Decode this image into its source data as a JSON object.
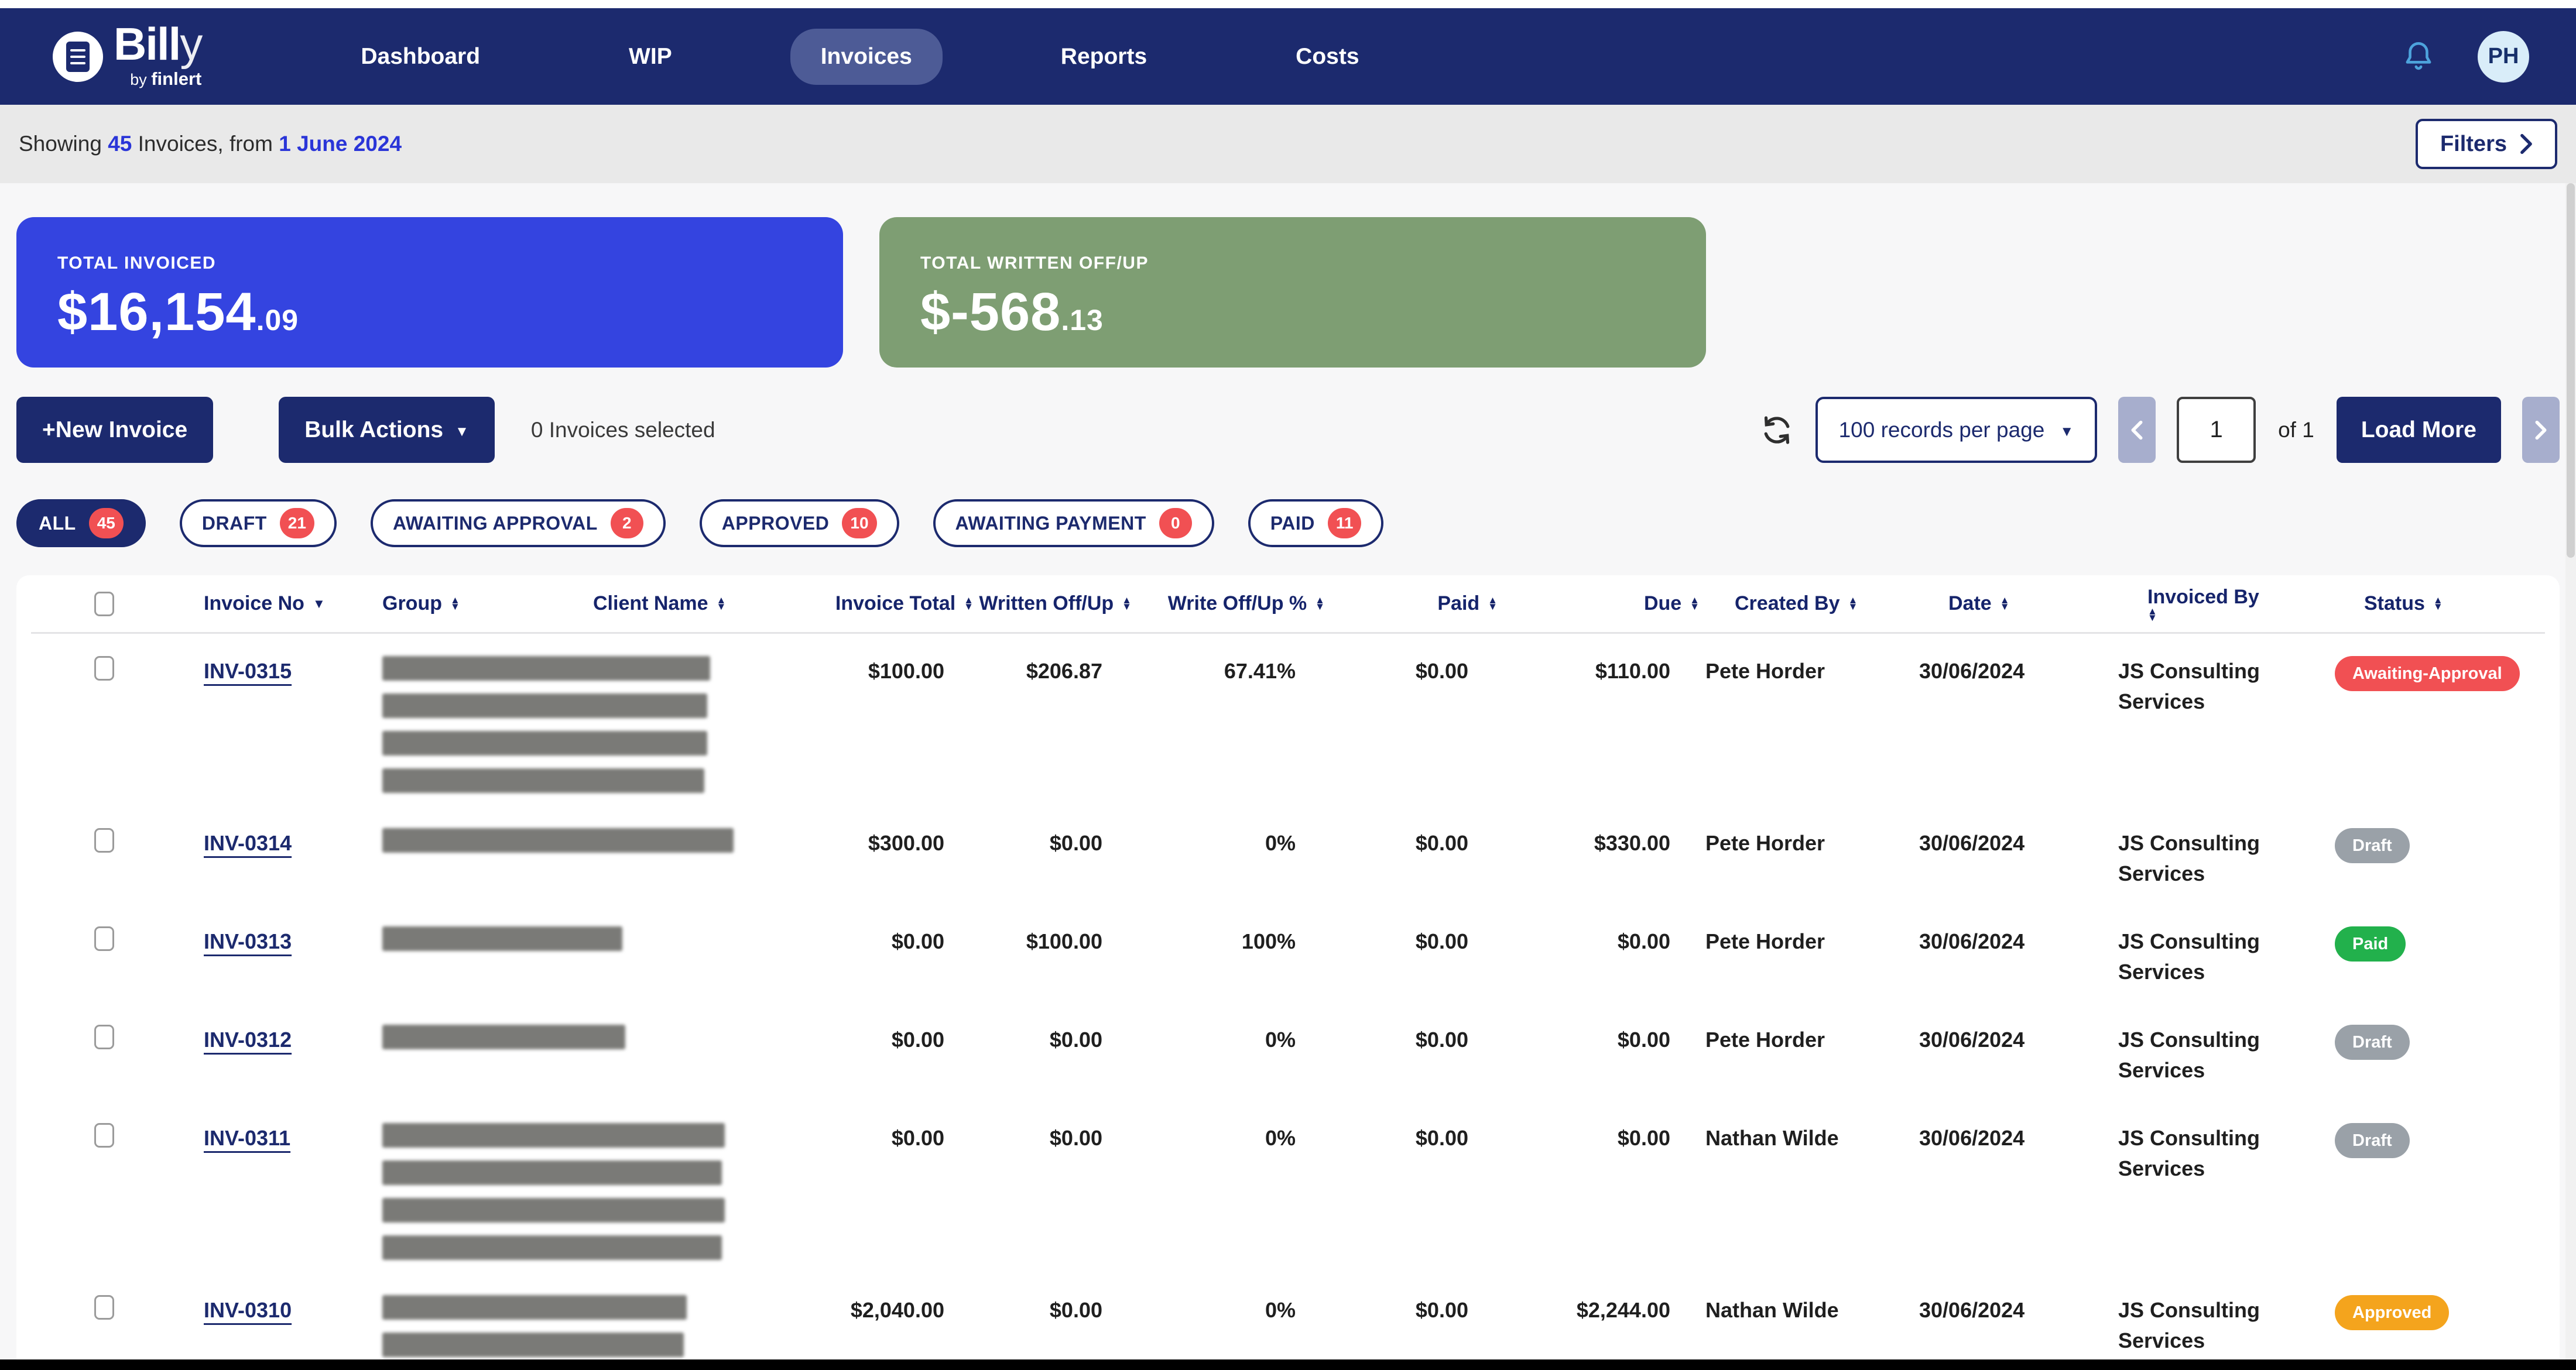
{
  "nav": {
    "brand": {
      "name_bold": "Bill",
      "name_light": "y",
      "byline_small": "by ",
      "byline_bold": "finlert"
    },
    "items": [
      {
        "label": "Dashboard",
        "active": false
      },
      {
        "label": "WIP",
        "active": false
      },
      {
        "label": "Invoices",
        "active": true
      },
      {
        "label": "Reports",
        "active": false
      },
      {
        "label": "Costs",
        "active": false
      }
    ],
    "avatar_initials": "PH"
  },
  "subheader": {
    "prefix": "Showing ",
    "count": "45",
    "middle": " Invoices, from ",
    "date": "1 June 2024",
    "filters_label": "Filters"
  },
  "summary_cards": [
    {
      "label": "TOTAL INVOICED",
      "value_main": "$16,154",
      "value_cents": ".09",
      "color": "#3444e0"
    },
    {
      "label": "TOTAL WRITTEN OFF/UP",
      "value_main": "$-568",
      "value_cents": ".13",
      "color": "#7e9e73"
    }
  ],
  "toolbar": {
    "new_invoice_label": "+New Invoice",
    "bulk_actions_label": "Bulk Actions",
    "selected_text": "0 Invoices selected",
    "records_per_page": "100 records per page",
    "page_value": "1",
    "of_text": "of 1",
    "load_more_label": "Load More"
  },
  "tabs": [
    {
      "label": "ALL",
      "count": "45",
      "active": true
    },
    {
      "label": "DRAFT",
      "count": "21",
      "active": false
    },
    {
      "label": "AWAITING APPROVAL",
      "count": "2",
      "active": false
    },
    {
      "label": "APPROVED",
      "count": "10",
      "active": false
    },
    {
      "label": "AWAITING PAYMENT",
      "count": "0",
      "active": false
    },
    {
      "label": "PAID",
      "count": "11",
      "active": false
    }
  ],
  "table": {
    "columns": [
      {
        "label": "Invoice No",
        "sort": "desc"
      },
      {
        "label": "Group",
        "sort": "both"
      },
      {
        "label": "Client Name",
        "sort": "both"
      },
      {
        "label": "Invoice Total",
        "sort": "both"
      },
      {
        "label": "Written Off/Up",
        "sort": "both"
      },
      {
        "label": "Write Off/Up %",
        "sort": "both"
      },
      {
        "label": "Paid",
        "sort": "both"
      },
      {
        "label": "Due",
        "sort": "both"
      },
      {
        "label": "Created By",
        "sort": "both"
      },
      {
        "label": "Date",
        "sort": "both"
      },
      {
        "label": "Invoiced By",
        "sort": "both"
      },
      {
        "label": "Status",
        "sort": "both"
      }
    ],
    "rows": [
      {
        "invoice_no": "INV-0315",
        "redacted_widths": [
          560,
          555,
          555,
          550
        ],
        "invoice_total": "$100.00",
        "written_off": "$206.87",
        "write_off_pct": "67.41%",
        "pct_alert": true,
        "paid": "$0.00",
        "due": "$110.00",
        "created_by": "Pete Horder",
        "date": "30/06/2024",
        "invoiced_by": "JS Consulting Services",
        "status": "Awaiting-Approval"
      },
      {
        "invoice_no": "INV-0314",
        "redacted_widths": [
          600
        ],
        "invoice_total": "$300.00",
        "written_off": "$0.00",
        "write_off_pct": "0%",
        "pct_alert": false,
        "paid": "$0.00",
        "due": "$330.00",
        "created_by": "Pete Horder",
        "date": "30/06/2024",
        "invoiced_by": "JS Consulting Services",
        "status": "Draft"
      },
      {
        "invoice_no": "INV-0313",
        "redacted_widths": [
          410
        ],
        "invoice_total": "$0.00",
        "written_off": "$100.00",
        "write_off_pct": "100%",
        "pct_alert": true,
        "paid": "$0.00",
        "due": "$0.00",
        "created_by": "Pete Horder",
        "date": "30/06/2024",
        "invoiced_by": "JS Consulting Services",
        "status": "Paid"
      },
      {
        "invoice_no": "INV-0312",
        "redacted_widths": [
          415
        ],
        "invoice_total": "$0.00",
        "written_off": "$0.00",
        "write_off_pct": "0%",
        "pct_alert": false,
        "paid": "$0.00",
        "due": "$0.00",
        "created_by": "Pete Horder",
        "date": "30/06/2024",
        "invoiced_by": "JS Consulting Services",
        "status": "Draft"
      },
      {
        "invoice_no": "INV-0311",
        "redacted_widths": [
          585,
          580,
          585,
          580
        ],
        "invoice_total": "$0.00",
        "written_off": "$0.00",
        "write_off_pct": "0%",
        "pct_alert": false,
        "paid": "$0.00",
        "due": "$0.00",
        "created_by": "Nathan Wilde",
        "date": "30/06/2024",
        "invoiced_by": "JS Consulting Services",
        "status": "Draft"
      },
      {
        "invoice_no": "INV-0310",
        "redacted_widths": [
          520,
          515,
          520
        ],
        "invoice_total": "$2,040.00",
        "written_off": "$0.00",
        "write_off_pct": "0%",
        "pct_alert": false,
        "paid": "$0.00",
        "due": "$2,244.00",
        "created_by": "Nathan Wilde",
        "date": "30/06/2024",
        "invoiced_by": "JS Consulting Services",
        "status": "Approved"
      }
    ],
    "status_colors": {
      "Awaiting-Approval": "#f15053",
      "Draft": "#9aa1a8",
      "Paid": "#22b14c",
      "Approved": "#f4a41d"
    }
  }
}
